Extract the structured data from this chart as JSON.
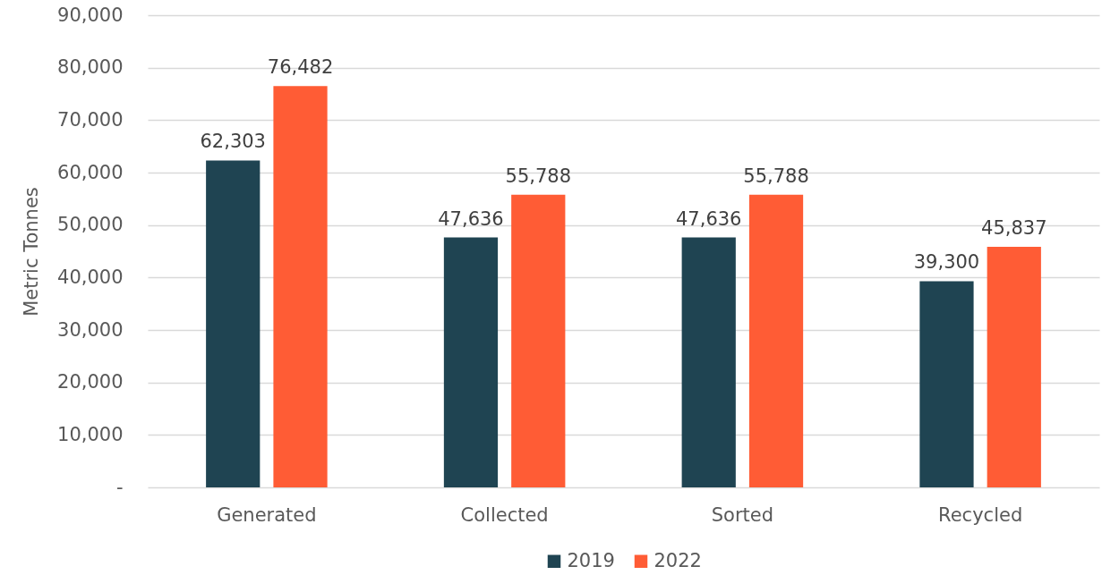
{
  "chart_data": {
    "type": "bar",
    "ylabel": "Metric Tonnes",
    "categories": [
      "Generated",
      "Collected",
      "Sorted",
      "Recycled"
    ],
    "series": [
      {
        "name": "2019",
        "color": "#1f4452",
        "values": [
          62303,
          47636,
          47636,
          39300
        ],
        "value_labels": [
          "62,303",
          "47,636",
          "47,636",
          "39,300"
        ]
      },
      {
        "name": "2022",
        "color": "#ff5c35",
        "values": [
          76482,
          55788,
          55788,
          45837
        ],
        "value_labels": [
          "76,482",
          "55,788",
          "55,788",
          "45,837"
        ]
      }
    ],
    "ylim": [
      0,
      90000
    ],
    "yticks": [
      {
        "value": 0,
        "label": "-"
      },
      {
        "value": 10000,
        "label": "10,000"
      },
      {
        "value": 20000,
        "label": "20,000"
      },
      {
        "value": 30000,
        "label": "30,000"
      },
      {
        "value": 40000,
        "label": "40,000"
      },
      {
        "value": 50000,
        "label": "50,000"
      },
      {
        "value": 60000,
        "label": "60,000"
      },
      {
        "value": 70000,
        "label": "70,000"
      },
      {
        "value": 80000,
        "label": "80,000"
      },
      {
        "value": 90000,
        "label": "90,000"
      }
    ],
    "grid": "y",
    "legend": "bottom"
  }
}
